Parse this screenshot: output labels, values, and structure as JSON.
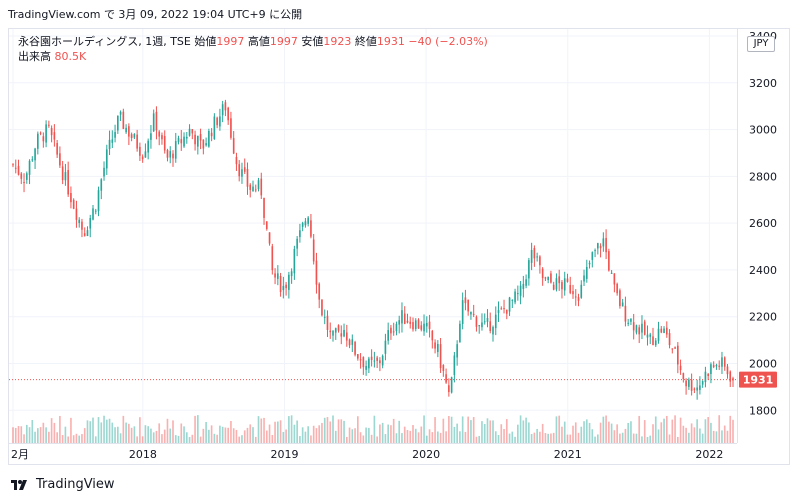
{
  "caption": "TradingView.com で 3月 09, 2022 19:04 UTC+9 に公開",
  "legend": {
    "symbol": "永谷園ホールディングス, 1週, TSE",
    "open_label": "始値",
    "open_value": "1997",
    "high_label": "高値",
    "high_value": "1997",
    "low_label": "安値",
    "low_value": "1923",
    "close_label": "終値",
    "close_value": "1931",
    "change": "−40 (−2.03%)",
    "volume_label": "出来高",
    "volume_value": "80.5K"
  },
  "currency": "JPY",
  "footer_brand": "TradingView",
  "colors": {
    "up": "#26a69a",
    "down": "#ef5350",
    "grid": "#f0f3fa",
    "axis_text": "#131722"
  },
  "chart_data": {
    "type": "candlestick",
    "title": "永谷園ホールディングス, 1週, TSE",
    "y_ticks": [
      1800,
      2000,
      2200,
      2400,
      2600,
      2800,
      3000,
      3200,
      3400
    ],
    "ylim": [
      1660,
      3430
    ],
    "x_ticks": [
      "2月",
      "2018",
      "2019",
      "2020",
      "2021",
      "2022"
    ],
    "xlim": [
      "2017-02",
      "2022-03"
    ],
    "last_price": 1931,
    "price_path": [
      {
        "x": "2017-02",
        "y": 2850
      },
      {
        "x": "2017-03",
        "y": 2790
      },
      {
        "x": "2017-04",
        "y": 2950
      },
      {
        "x": "2017-05",
        "y": 3000
      },
      {
        "x": "2017-06",
        "y": 2850
      },
      {
        "x": "2017-07",
        "y": 2700
      },
      {
        "x": "2017-08",
        "y": 2560
      },
      {
        "x": "2017-09",
        "y": 2680
      },
      {
        "x": "2017-10",
        "y": 2900
      },
      {
        "x": "2017-11",
        "y": 3050
      },
      {
        "x": "2018-01",
        "y": 2900
      },
      {
        "x": "2018-02",
        "y": 3050
      },
      {
        "x": "2018-03",
        "y": 2870
      },
      {
        "x": "2018-05",
        "y": 3000
      },
      {
        "x": "2018-06",
        "y": 2920
      },
      {
        "x": "2018-07",
        "y": 3020
      },
      {
        "x": "2018-08",
        "y": 3100
      },
      {
        "x": "2018-09",
        "y": 2850
      },
      {
        "x": "2018-10",
        "y": 2750
      },
      {
        "x": "2018-11",
        "y": 2750
      },
      {
        "x": "2018-12",
        "y": 2380
      },
      {
        "x": "2019-01",
        "y": 2320
      },
      {
        "x": "2019-02",
        "y": 2500
      },
      {
        "x": "2019-03",
        "y": 2650
      },
      {
        "x": "2019-04",
        "y": 2250
      },
      {
        "x": "2019-05",
        "y": 2100
      },
      {
        "x": "2019-06",
        "y": 2150
      },
      {
        "x": "2019-07",
        "y": 2050
      },
      {
        "x": "2019-08",
        "y": 1990
      },
      {
        "x": "2019-09",
        "y": 2000
      },
      {
        "x": "2019-10",
        "y": 2150
      },
      {
        "x": "2019-11",
        "y": 2200
      },
      {
        "x": "2020-01",
        "y": 2150
      },
      {
        "x": "2020-02",
        "y": 2050
      },
      {
        "x": "2020-03",
        "y": 1850
      },
      {
        "x": "2020-04",
        "y": 2250
      },
      {
        "x": "2020-05",
        "y": 2200
      },
      {
        "x": "2020-06",
        "y": 2150
      },
      {
        "x": "2020-08",
        "y": 2250
      },
      {
        "x": "2020-09",
        "y": 2300
      },
      {
        "x": "2020-10",
        "y": 2480
      },
      {
        "x": "2020-11",
        "y": 2350
      },
      {
        "x": "2021-01",
        "y": 2330
      },
      {
        "x": "2021-02",
        "y": 2300
      },
      {
        "x": "2021-03",
        "y": 2450
      },
      {
        "x": "2021-04",
        "y": 2530
      },
      {
        "x": "2021-05",
        "y": 2300
      },
      {
        "x": "2021-06",
        "y": 2200
      },
      {
        "x": "2021-07",
        "y": 2150
      },
      {
        "x": "2021-08",
        "y": 2100
      },
      {
        "x": "2021-09",
        "y": 2150
      },
      {
        "x": "2021-10",
        "y": 2050
      },
      {
        "x": "2021-11",
        "y": 1920
      },
      {
        "x": "2021-12",
        "y": 1900
      },
      {
        "x": "2022-01",
        "y": 1980
      },
      {
        "x": "2022-02",
        "y": 2000
      },
      {
        "x": "2022-03",
        "y": 1931
      }
    ]
  }
}
